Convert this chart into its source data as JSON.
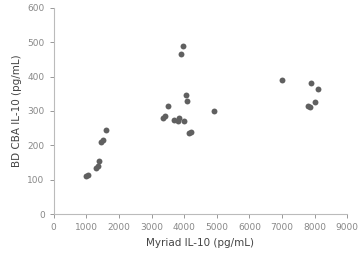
{
  "x": [
    1000,
    1050,
    1300,
    1350,
    1400,
    1450,
    1500,
    1600,
    3350,
    3400,
    3500,
    3700,
    3800,
    3850,
    3900,
    3950,
    4000,
    4050,
    4100,
    4150,
    4200,
    4900,
    7000,
    7800,
    7850,
    7900,
    8000,
    8100
  ],
  "y": [
    110,
    115,
    135,
    140,
    155,
    210,
    215,
    245,
    280,
    285,
    315,
    275,
    270,
    280,
    465,
    490,
    270,
    345,
    330,
    235,
    240,
    300,
    390,
    315,
    310,
    380,
    325,
    365
  ],
  "xlabel": "Myriad IL-10 (pg/mL)",
  "ylabel": "BD CBA IL-10 (pg/mL)",
  "xlim": [
    0,
    9000
  ],
  "ylim": [
    0,
    600
  ],
  "xticks": [
    0,
    1000,
    2000,
    3000,
    4000,
    5000,
    6000,
    7000,
    8000,
    9000
  ],
  "yticks": [
    0,
    100,
    200,
    300,
    400,
    500,
    600
  ],
  "dot_color": "#606060",
  "dot_size": 18,
  "bg_color": "#ffffff",
  "spine_color": "#bbbbbb",
  "tick_color": "#888888",
  "label_fontsize": 7.5,
  "tick_fontsize": 6.5
}
